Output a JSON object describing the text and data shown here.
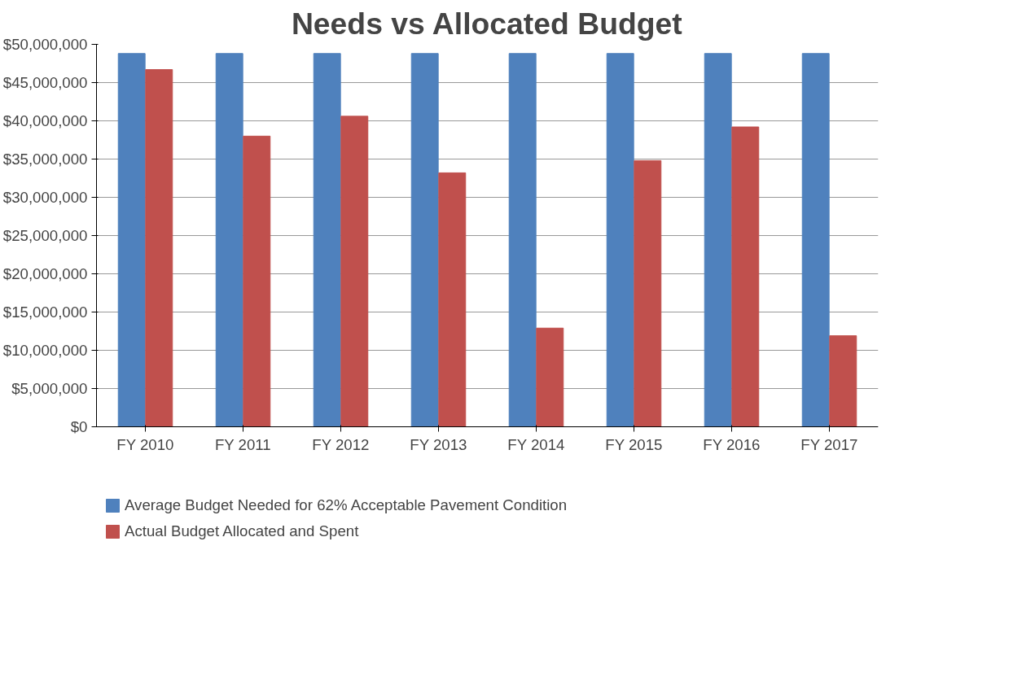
{
  "chart_data": {
    "type": "bar",
    "title": "Needs vs Allocated Budget",
    "categories": [
      "FY 2010",
      "FY 2011",
      "FY 2012",
      "FY 2013",
      "FY 2014",
      "FY 2015",
      "FY 2016",
      "FY 2017"
    ],
    "series": [
      {
        "name": "Average Budget Needed for 62% Acceptable Pavement Condition",
        "color": "#4f81bd",
        "values": [
          48800000,
          48800000,
          48800000,
          48800000,
          48800000,
          48800000,
          48800000,
          48800000
        ]
      },
      {
        "name": "Actual Budget Allocated and Spent",
        "color": "#c0504d",
        "values": [
          46700000,
          38000000,
          40600000,
          33200000,
          12900000,
          34800000,
          39200000,
          11900000
        ]
      }
    ],
    "ylim": [
      0,
      50000000
    ],
    "yticks": [
      {
        "value": 0,
        "label": "$0"
      },
      {
        "value": 5000000,
        "label": "$5,000,000"
      },
      {
        "value": 10000000,
        "label": "$10,000,000"
      },
      {
        "value": 15000000,
        "label": "$15,000,000"
      },
      {
        "value": 20000000,
        "label": "$20,000,000"
      },
      {
        "value": 25000000,
        "label": "$25,000,000"
      },
      {
        "value": 30000000,
        "label": "$30,000,000"
      },
      {
        "value": 35000000,
        "label": "$35,000,000"
      },
      {
        "value": 40000000,
        "label": "$40,000,000"
      },
      {
        "value": 45000000,
        "label": "$45,000,000"
      },
      {
        "value": 50000000,
        "label": "$50,000,000"
      }
    ],
    "grid": "y",
    "legend": "bottom"
  }
}
